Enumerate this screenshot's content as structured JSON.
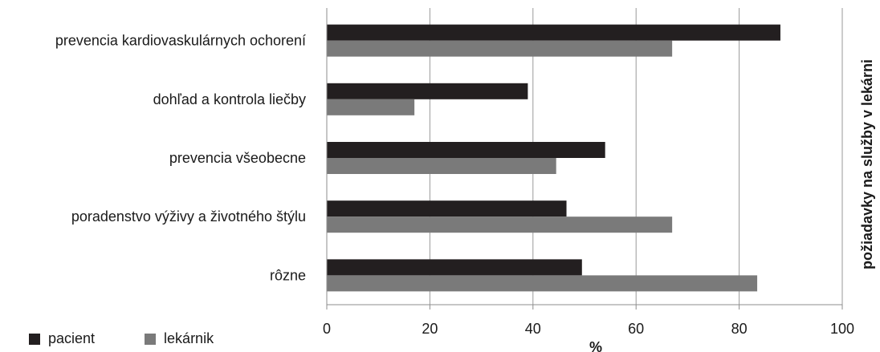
{
  "chart_data": {
    "type": "bar",
    "orientation": "horizontal",
    "categories": [
      "prevencia kardiovaskulárnych ochorení",
      "dohľad a kontrola liečby",
      "prevencia všeobecne",
      "poradenstvo výživy a životného štýlu",
      "rôzne"
    ],
    "series": [
      {
        "name": "pacient",
        "color": "#231f20",
        "values": [
          88,
          39,
          54,
          46.5,
          49.5
        ]
      },
      {
        "name": "lekárnik",
        "color": "#7a7a7a",
        "values": [
          67,
          17,
          44.5,
          67,
          83.5
        ]
      }
    ],
    "xlabel": "%",
    "ylabel": "",
    "side_title": "požiadavky na služby v lekárni",
    "xlim": [
      0,
      100
    ],
    "xticks": [
      "0",
      "20",
      "40",
      "60",
      "80",
      "100"
    ],
    "grid": "vertical",
    "legend_position": "bottom-left"
  }
}
